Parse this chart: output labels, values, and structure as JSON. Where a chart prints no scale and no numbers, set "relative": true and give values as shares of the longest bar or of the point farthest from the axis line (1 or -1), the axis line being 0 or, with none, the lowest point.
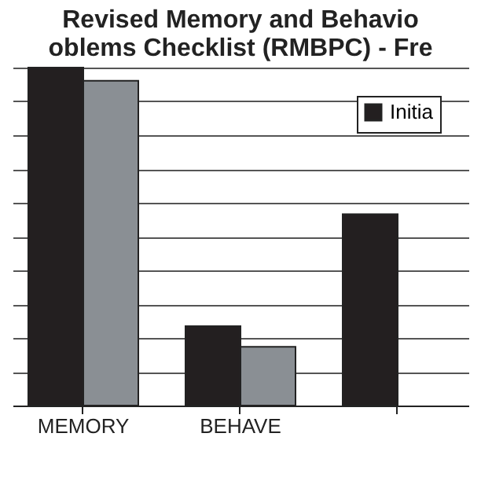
{
  "chart_data": {
    "type": "bar",
    "title": [
      "Revised Memory and Behavio",
      "oblems Checklist (RMBPC) - Fre"
    ],
    "categories": [
      "MEMORY",
      "BEHAVE",
      null
    ],
    "relative": true,
    "series": [
      {
        "name": "Initia",
        "color": "#231f20",
        "values": [
          1,
          0.235,
          0.566
        ]
      },
      {
        "color": "#8a8f94",
        "values": [
          0.961,
          0.174,
          null
        ]
      }
    ],
    "grid": "y",
    "legend": "top right"
  }
}
